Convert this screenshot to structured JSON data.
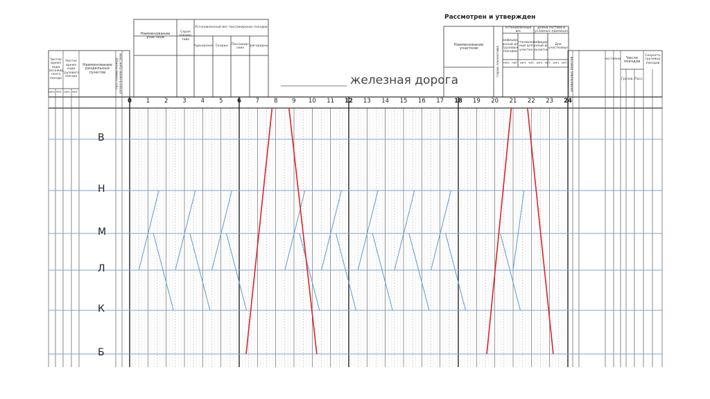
{
  "left_table": {
    "passenger_time": "Чистое время хода пассажир-ского поезда",
    "freight_time": "Чистое время хода грузового поезда",
    "stations_header": "Наименование раздельных пунктов",
    "distance": "Расстояние между раздельными пунктами",
    "subheads": [
      "неч.",
      "чет.",
      "неч.",
      "чет."
    ]
  },
  "sections_table": {
    "name": "Наименование участков",
    "series": "Серия локомо-тива",
    "weights": "Установленный вес пассажирских поездов",
    "kinds": [
      "Курьерских",
      "Скорых",
      "Пассажир-ских",
      "Пригородных"
    ]
  },
  "title": "железная дорога",
  "approval": {
    "title": "Рассмотрен и утвержден",
    "name": "Наименование участков",
    "series": "Серия локомотива",
    "weight": "Установленный вес",
    "length": "Длина состава в условных единицах",
    "kinds": [
      "Унифициро-ванный для грузовых поездов",
      "Установлен-ный для участка",
      "Унифициро-ванный для транзитных",
      "Для участковых"
    ],
    "subheads": [
      "неч.",
      "чет.",
      "неч.",
      "чет.",
      "неч.",
      "чет.",
      "неч.",
      "чет."
    ]
  },
  "right_table": {
    "stations_header": "Наименование раздельных пунктов",
    "distance": "Расстояние",
    "count": "Число поездов",
    "speed": "Скорость грузовых поездов",
    "kinds": [
      "Грузов.",
      "Пасс."
    ]
  },
  "hours": [
    0,
    1,
    2,
    3,
    4,
    5,
    6,
    7,
    8,
    9,
    10,
    11,
    12,
    13,
    14,
    15,
    16,
    17,
    18,
    19,
    20,
    21,
    22,
    23,
    24
  ],
  "stations": [
    "В",
    "Н",
    "М",
    "Л",
    "К",
    "Б"
  ],
  "passenger_trains": [
    {
      "color": "#e02020",
      "points": [
        [
          6.38,
          5
        ],
        [
          7.62,
          0
        ]
      ]
    },
    {
      "color": "#e02020",
      "points": [
        [
          8.92,
          0
        ],
        [
          10.25,
          5
        ]
      ]
    },
    {
      "color": "#e02020",
      "points": [
        [
          19.56,
          5
        ],
        [
          20.73,
          0
        ]
      ]
    },
    {
      "color": "#e02020",
      "points": [
        [
          21.97,
          0
        ],
        [
          23.2,
          5
        ]
      ]
    }
  ],
  "freight_trains": [
    {
      "color": "#6a9fd4",
      "points": [
        [
          0.5,
          3
        ],
        [
          1.6,
          1
        ]
      ]
    },
    {
      "color": "#6a9fd4",
      "points": [
        [
          2.5,
          3
        ],
        [
          3.6,
          1
        ]
      ]
    },
    {
      "color": "#6a9fd4",
      "points": [
        [
          4.5,
          3
        ],
        [
          5.6,
          1
        ]
      ]
    },
    {
      "color": "#6a9fd4",
      "points": [
        [
          8.5,
          3
        ],
        [
          9.6,
          1
        ]
      ]
    },
    {
      "color": "#6a9fd4",
      "points": [
        [
          10.5,
          3
        ],
        [
          11.6,
          1
        ]
      ]
    },
    {
      "color": "#6a9fd4",
      "points": [
        [
          12.5,
          3
        ],
        [
          13.6,
          1
        ]
      ]
    },
    {
      "color": "#6a9fd4",
      "points": [
        [
          14.5,
          3
        ],
        [
          15.6,
          1
        ]
      ]
    },
    {
      "color": "#6a9fd4",
      "points": [
        [
          16.5,
          3
        ],
        [
          17.6,
          1
        ]
      ]
    },
    {
      "color": "#6a9fd4",
      "points": [
        [
          1.3,
          2
        ],
        [
          2.4,
          4
        ]
      ]
    },
    {
      "color": "#6a9fd4",
      "points": [
        [
          3.3,
          2
        ],
        [
          4.4,
          4
        ]
      ]
    },
    {
      "color": "#6a9fd4",
      "points": [
        [
          5.3,
          2
        ],
        [
          6.4,
          4
        ]
      ]
    },
    {
      "color": "#6a9fd4",
      "points": [
        [
          9.3,
          2
        ],
        [
          10.4,
          4
        ]
      ]
    },
    {
      "color": "#6a9fd4",
      "points": [
        [
          11.3,
          2
        ],
        [
          12.4,
          4
        ]
      ]
    },
    {
      "color": "#6a9fd4",
      "points": [
        [
          13.3,
          2
        ],
        [
          14.4,
          4
        ]
      ]
    },
    {
      "color": "#6a9fd4",
      "points": [
        [
          15.3,
          2
        ],
        [
          16.4,
          4
        ]
      ]
    },
    {
      "color": "#6a9fd4",
      "points": [
        [
          17.3,
          2
        ],
        [
          18.4,
          4
        ]
      ]
    },
    {
      "color": "#6a9fd4",
      "points": [
        [
          20.3,
          2
        ],
        [
          21.4,
          4
        ]
      ]
    },
    {
      "color": "#6a9fd4",
      "points": [
        [
          21.0,
          3
        ],
        [
          21.6,
          1
        ]
      ]
    }
  ]
}
